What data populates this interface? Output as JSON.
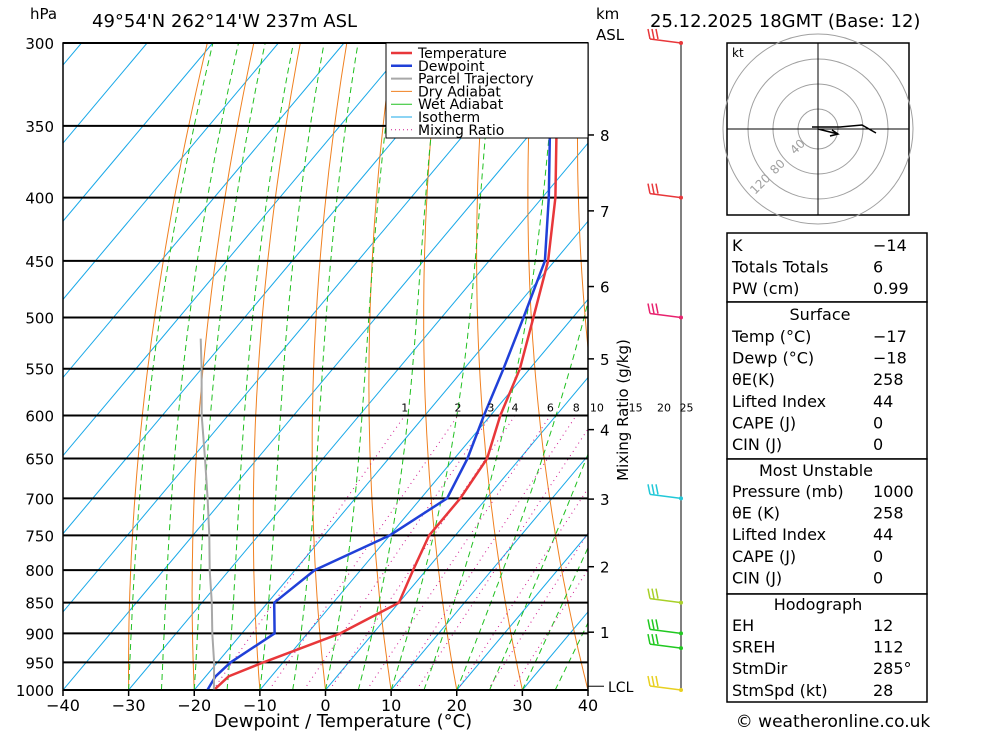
{
  "header": {
    "location": "49°54'N 262°14'W 237m ASL",
    "datetime": "25.12.2025 18GMT (Base: 12)",
    "hpa_label": "hPa",
    "km_label": "km",
    "asl_label": "ASL"
  },
  "chart_data": {
    "type": "line",
    "subtype": "skew-T log-P",
    "xlabel": "Dewpoint / Temperature (°C)",
    "ylabel": "hPa",
    "xlim": [
      -40,
      40
    ],
    "ylim": [
      1000,
      300
    ],
    "x_ticks": [
      "−40",
      "−30",
      "−20",
      "−10",
      "0",
      "10",
      "20",
      "30",
      "40"
    ],
    "pressure_levels": [
      300,
      350,
      400,
      450,
      500,
      550,
      600,
      650,
      700,
      750,
      800,
      850,
      900,
      950,
      1000
    ],
    "km_ticks": [
      {
        "km": "1",
        "p": 898
      },
      {
        "km": "2",
        "p": 795
      },
      {
        "km": "3",
        "p": 701
      },
      {
        "km": "4",
        "p": 616
      },
      {
        "km": "5",
        "p": 540
      },
      {
        "km": "6",
        "p": 472
      },
      {
        "km": "7",
        "p": 410
      },
      {
        "km": "8",
        "p": 356
      }
    ],
    "lcl": {
      "label": "LCL",
      "p": 993
    },
    "mixing_ratio_title": "Mixing Ratio (g/kg)",
    "mixing_ratios": [
      "1",
      "2",
      "3",
      "4",
      "6",
      "8",
      "10",
      "15",
      "20",
      "25"
    ],
    "legend": [
      "Temperature",
      "Dewpoint",
      "Parcel Trajectory",
      "Dry Adiabat",
      "Wet Adiabat",
      "Isotherm",
      "Mixing Ratio"
    ],
    "legend_position": "top-right",
    "series": [
      {
        "name": "Temperature",
        "color": "#e8373a",
        "points": [
          [
            1000,
            -17
          ],
          [
            975,
            -16.5
          ],
          [
            950,
            -13
          ],
          [
            900,
            -5
          ],
          [
            850,
            0
          ],
          [
            800,
            -2
          ],
          [
            750,
            -4
          ],
          [
            700,
            -4
          ],
          [
            650,
            -5
          ],
          [
            600,
            -8.5
          ],
          [
            550,
            -11.5
          ],
          [
            500,
            -16
          ],
          [
            450,
            -21
          ],
          [
            400,
            -28
          ],
          [
            350,
            -37
          ],
          [
            300,
            -47
          ]
        ]
      },
      {
        "name": "Dewpoint",
        "color": "#2040d8",
        "points": [
          [
            1000,
            -18
          ],
          [
            975,
            -18.5
          ],
          [
            950,
            -18
          ],
          [
            900,
            -15
          ],
          [
            850,
            -19
          ],
          [
            800,
            -17
          ],
          [
            750,
            -10
          ],
          [
            700,
            -6
          ],
          [
            650,
            -8
          ],
          [
            600,
            -11
          ],
          [
            550,
            -14
          ],
          [
            500,
            -17.5
          ],
          [
            450,
            -21.5
          ],
          [
            400,
            -29
          ],
          [
            350,
            -38
          ],
          [
            300,
            -48
          ]
        ]
      },
      {
        "name": "Parcel Trajectory",
        "color": "#a8a8a8",
        "points": [
          [
            1000,
            -17
          ],
          [
            950,
            -20.5
          ],
          [
            900,
            -24.5
          ],
          [
            850,
            -28.5
          ],
          [
            800,
            -33
          ],
          [
            750,
            -37.5
          ],
          [
            700,
            -42.5
          ],
          [
            650,
            -48
          ],
          [
            600,
            -54
          ],
          [
            550,
            -60
          ],
          [
            520,
            -64
          ]
        ]
      }
    ],
    "wind_barbs": [
      {
        "p": 300,
        "color": "#e8373a"
      },
      {
        "p": 400,
        "color": "#e8373a"
      },
      {
        "p": 500,
        "color": "#e8226e"
      },
      {
        "p": 700,
        "color": "#22c8d8"
      },
      {
        "p": 850,
        "color": "#a8d028"
      },
      {
        "p": 900,
        "color": "#20c820"
      },
      {
        "p": 925,
        "color": "#20c820"
      },
      {
        "p": 1000,
        "color": "#e8d020"
      }
    ],
    "hodograph": {
      "unit": "kt",
      "ring_labels": [
        "40",
        "80",
        "120"
      ]
    }
  },
  "table": {
    "top": [
      {
        "label": "K",
        "value": "−14"
      },
      {
        "label": "Totals Totals",
        "value": "6"
      },
      {
        "label": "PW (cm)",
        "value": "0.99"
      }
    ],
    "surface": {
      "title": "Surface",
      "rows": [
        {
          "label": "Temp (°C)",
          "value": "−17"
        },
        {
          "label": "Dewp (°C)",
          "value": "−18"
        },
        {
          "label": "θE(K)",
          "value": "258"
        },
        {
          "label": "Lifted Index",
          "value": "44"
        },
        {
          "label": "CAPE (J)",
          "value": "0"
        },
        {
          "label": "CIN (J)",
          "value": "0"
        }
      ]
    },
    "most_unstable": {
      "title": "Most Unstable",
      "rows": [
        {
          "label": "Pressure (mb)",
          "value": "1000"
        },
        {
          "label": "θE (K)",
          "value": "258"
        },
        {
          "label": "Lifted Index",
          "value": "44"
        },
        {
          "label": "CAPE (J)",
          "value": "0"
        },
        {
          "label": "CIN (J)",
          "value": "0"
        }
      ]
    },
    "hodograph": {
      "title": "Hodograph",
      "rows": [
        {
          "label": "EH",
          "value": "12"
        },
        {
          "label": "SREH",
          "value": "112"
        },
        {
          "label": "StmDir",
          "value": "285°"
        },
        {
          "label": "StmSpd (kt)",
          "value": "28"
        }
      ]
    }
  },
  "footer": {
    "copyright": "© weatheronline.co.uk"
  }
}
